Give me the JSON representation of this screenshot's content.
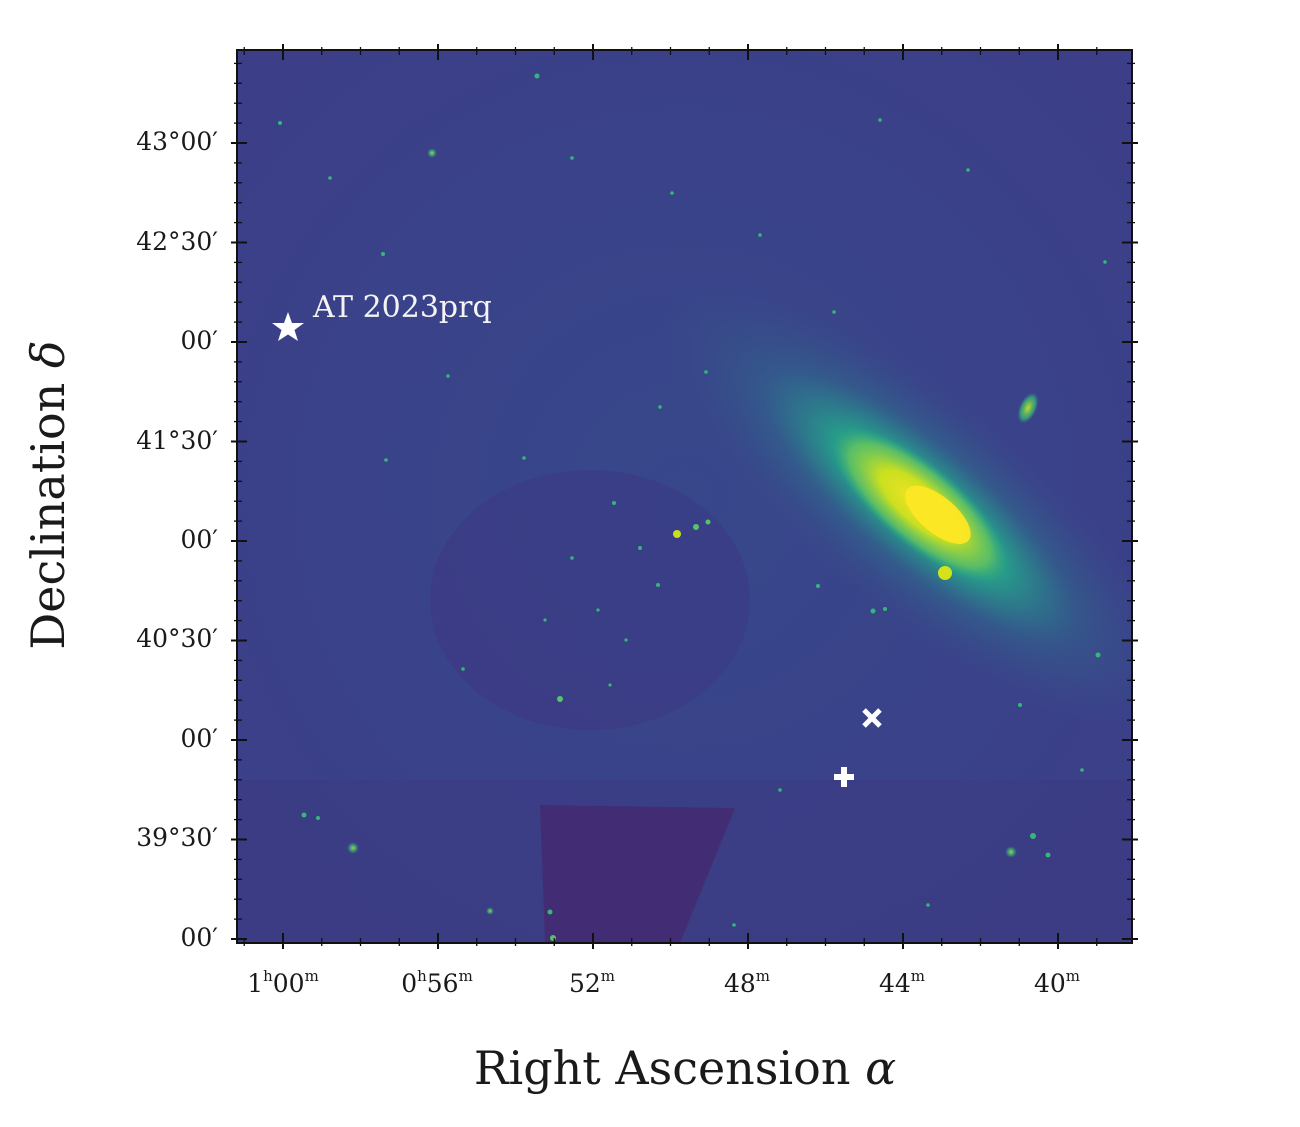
{
  "figure": {
    "annotation_label": "AT 2023prq",
    "x_axis": {
      "label": "Right Ascension",
      "symbol": "α",
      "ticks": [
        {
          "main": "1",
          "unit": "h",
          "rest": "00",
          "unit2": "m"
        },
        {
          "main": "0",
          "unit": "h",
          "rest": "56",
          "unit2": "m"
        },
        {
          "main": "52",
          "unit": "m"
        },
        {
          "main": "48",
          "unit": "m"
        },
        {
          "main": "44",
          "unit": "m"
        },
        {
          "main": "40",
          "unit": "m"
        }
      ]
    },
    "y_axis": {
      "label": "Declination",
      "symbol": "δ",
      "ticks": [
        "43°00′",
        "42°30′",
        "00′",
        "41°30′",
        "00′",
        "40°30′",
        "00′",
        "39°30′",
        "00′"
      ]
    },
    "markers": [
      {
        "type": "star",
        "icon": "star-icon",
        "color": "#ffffff"
      },
      {
        "type": "x-cross",
        "icon": "x-mark-icon",
        "color": "#ffffff"
      },
      {
        "type": "plus",
        "icon": "plus-icon",
        "color": "#ffffff"
      }
    ],
    "colormap": [
      "#440154",
      "#3b3f86",
      "#31688e",
      "#21918c",
      "#35b779",
      "#90d743",
      "#fde725"
    ]
  }
}
